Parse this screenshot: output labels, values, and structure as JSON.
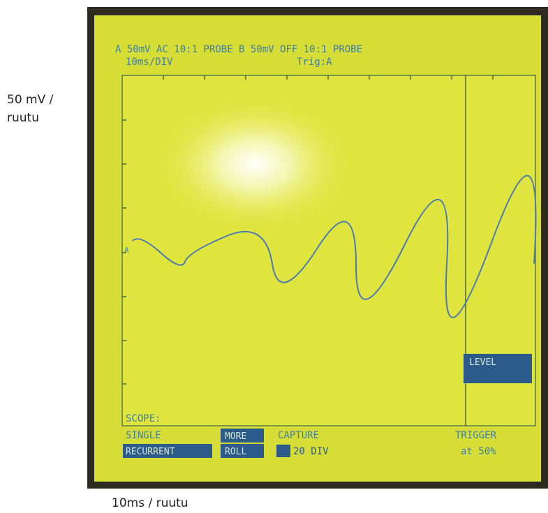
{
  "annotations": {
    "vertical_scale": "50 mV / ruutu",
    "horizontal_scale": "10ms / ruutu"
  },
  "screen": {
    "header_line1": "A  50mV AC  10:1 PROBE B  50mV OFF 10:1 PROBE",
    "header_line2": "10ms/DIV",
    "trigger": "Trig:A",
    "channel_marker": "A",
    "scope_label": "SCOPE:",
    "menu": {
      "single": "SINGLE",
      "recurrent": "RECURRENT",
      "more": "MORE",
      "roll": "ROLL",
      "capture": "CAPTURE",
      "capture_div": "20 DIV",
      "trigger": "TRIGGER",
      "trigger_pos": "at 50%",
      "level": "LEVEL"
    }
  }
}
